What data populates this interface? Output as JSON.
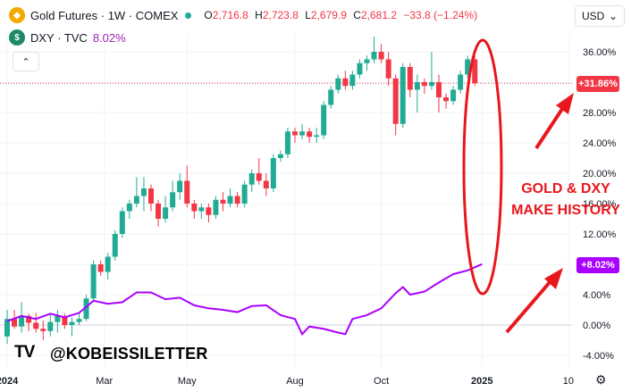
{
  "header": {
    "gold_symbol": "Gold Futures · 1W · COMEX",
    "ohlc": [
      {
        "k": "O",
        "v": "2,716.8"
      },
      {
        "k": "H",
        "v": "2,723.8"
      },
      {
        "k": "L",
        "v": "2,679.9"
      },
      {
        "k": "C",
        "v": "2,681.2"
      },
      {
        "k": "",
        "v": "−33.8 (−1.24%)"
      }
    ],
    "dxy_symbol": "DXY · TVC",
    "dxy_pct": "8.02%",
    "currency": "USD",
    "collapse": "⌃"
  },
  "overlay": {
    "annotation_line1": "GOLD & DXY",
    "annotation_line2": "MAKE HISTORY",
    "handle": "@KOBEISSILETTER",
    "logo": "TV"
  },
  "colors": {
    "up": "#22ab94",
    "down": "#f23645",
    "dxy_line": "#aa00ff",
    "annotation": "#e8161d",
    "grid": "#f0f3fa"
  },
  "chart_data": {
    "type": "candlestick+line",
    "y_unit": "%",
    "ylim": [
      -5.5,
      40.5
    ],
    "y_ticks": [
      "36.00%",
      "32.00%",
      "28.00%",
      "24.00%",
      "20.00%",
      "16.00%",
      "12.00%",
      "8.00%",
      "4.00%",
      "0.00%",
      "-4.00%"
    ],
    "y_tick_values": [
      36,
      32,
      28,
      24,
      20,
      16,
      12,
      8,
      4,
      0,
      -4
    ],
    "x_labels": [
      "2024",
      "Mar",
      "May",
      "Aug",
      "Oct",
      "2025",
      "10"
    ],
    "x_label_index": [
      0,
      13.5,
      25,
      40,
      52,
      66,
      78
    ],
    "x_range": [
      -1,
      82
    ],
    "last_value_tags": {
      "gold": "+31.86%",
      "dxy": "+8.02%"
    },
    "gold_last": 31.86,
    "gold_candles": [
      [
        0,
        -1.5,
        2.0,
        -2.5,
        0.8
      ],
      [
        1,
        0.8,
        2.0,
        -0.5,
        -0.2
      ],
      [
        2,
        -0.2,
        3.0,
        -1.0,
        1.2
      ],
      [
        3,
        1.2,
        1.5,
        -0.8,
        0.3
      ],
      [
        4,
        0.3,
        1.6,
        -1.0,
        -0.5
      ],
      [
        5,
        -0.5,
        0.6,
        -2.0,
        -0.8
      ],
      [
        6,
        -0.8,
        1.5,
        -1.5,
        0.4
      ],
      [
        7,
        0.4,
        2.0,
        -1.0,
        1.2
      ],
      [
        8,
        1.2,
        1.5,
        -0.5,
        0.0
      ],
      [
        9,
        0.0,
        1.0,
        -1.5,
        0.4
      ],
      [
        10,
        0.4,
        1.5,
        0.0,
        0.8
      ],
      [
        11,
        0.8,
        4.0,
        0.5,
        3.5
      ],
      [
        12,
        3.5,
        8.5,
        3.0,
        8.0
      ],
      [
        13,
        8.0,
        8.5,
        6.5,
        7.0
      ],
      [
        14,
        7.0,
        9.5,
        6.0,
        9.0
      ],
      [
        15,
        9.0,
        12.5,
        8.5,
        12.0
      ],
      [
        16,
        12.0,
        15.5,
        11.5,
        15.0
      ],
      [
        17,
        15.0,
        16.5,
        14.0,
        16.0
      ],
      [
        18,
        16.0,
        19.5,
        15.5,
        17.0
      ],
      [
        19,
        17.0,
        19.5,
        15.0,
        18.0
      ],
      [
        20,
        18.0,
        18.5,
        15.0,
        16.0
      ],
      [
        21,
        16.0,
        16.5,
        13.0,
        14.0
      ],
      [
        22,
        14.0,
        17.0,
        13.5,
        15.5
      ],
      [
        23,
        15.5,
        19.0,
        15.0,
        17.5
      ],
      [
        24,
        17.5,
        20.0,
        16.5,
        19.0
      ],
      [
        25,
        19.0,
        21.0,
        15.5,
        16.0
      ],
      [
        26,
        16.0,
        16.5,
        14.0,
        15.0
      ],
      [
        27,
        15.0,
        16.0,
        14.0,
        15.5
      ],
      [
        28,
        15.5,
        16.0,
        13.5,
        14.5
      ],
      [
        29,
        14.5,
        17.0,
        14.0,
        16.5
      ],
      [
        30,
        16.5,
        17.5,
        15.0,
        16.0
      ],
      [
        31,
        16.0,
        18.0,
        15.5,
        17.0
      ],
      [
        32,
        17.0,
        17.5,
        15.5,
        16.0
      ],
      [
        33,
        16.0,
        19.0,
        15.5,
        18.5
      ],
      [
        34,
        18.5,
        20.5,
        17.5,
        20.0
      ],
      [
        35,
        20.0,
        22.0,
        18.5,
        19.0
      ],
      [
        36,
        19.0,
        20.0,
        17.0,
        18.0
      ],
      [
        37,
        18.0,
        22.5,
        17.5,
        22.0
      ],
      [
        38,
        22.0,
        23.0,
        21.5,
        22.5
      ],
      [
        39,
        22.5,
        26.0,
        22.0,
        25.5
      ],
      [
        40,
        25.5,
        26.0,
        24.0,
        25.0
      ],
      [
        41,
        25.0,
        26.5,
        24.5,
        25.5
      ],
      [
        42,
        25.5,
        26.0,
        24.0,
        24.8
      ],
      [
        43,
        24.8,
        26.0,
        24.0,
        25.0
      ],
      [
        44,
        25.0,
        29.5,
        24.5,
        29.0
      ],
      [
        45,
        29.0,
        31.5,
        28.5,
        31.0
      ],
      [
        46,
        31.0,
        33.0,
        30.5,
        32.5
      ],
      [
        47,
        32.5,
        33.5,
        31.0,
        31.5
      ],
      [
        48,
        31.5,
        33.5,
        31.0,
        33.0
      ],
      [
        49,
        33.0,
        35.0,
        32.5,
        34.5
      ],
      [
        50,
        34.5,
        35.5,
        33.5,
        35.0
      ],
      [
        51,
        35.0,
        38.0,
        34.5,
        36.0
      ],
      [
        52,
        36.0,
        37.0,
        34.5,
        35.0
      ],
      [
        53,
        35.0,
        36.0,
        31.5,
        32.5
      ],
      [
        54,
        32.5,
        33.0,
        25.0,
        26.5
      ],
      [
        55,
        26.5,
        34.5,
        26.0,
        34.0
      ],
      [
        56,
        34.0,
        34.5,
        30.0,
        31.0
      ],
      [
        57,
        31.0,
        33.0,
        28.0,
        32.0
      ],
      [
        58,
        32.0,
        32.5,
        30.5,
        31.5
      ],
      [
        59,
        31.5,
        36.0,
        31.0,
        32.0
      ],
      [
        60,
        32.0,
        33.0,
        28.0,
        30.0
      ],
      [
        61,
        30.0,
        30.5,
        28.5,
        29.5
      ],
      [
        62,
        29.5,
        31.5,
        29.0,
        31.0
      ],
      [
        63,
        31.0,
        33.5,
        30.5,
        33.0
      ],
      [
        64,
        33.0,
        35.5,
        32.5,
        35.0
      ],
      [
        65,
        35.0,
        35.5,
        31.5,
        31.86
      ]
    ],
    "dxy_line": [
      [
        0,
        0.5
      ],
      [
        2,
        1.2
      ],
      [
        4,
        0.8
      ],
      [
        6,
        1.5
      ],
      [
        8,
        1.0
      ],
      [
        10,
        1.6
      ],
      [
        12,
        3.2
      ],
      [
        14,
        2.8
      ],
      [
        16,
        3.0
      ],
      [
        18,
        4.3
      ],
      [
        20,
        4.3
      ],
      [
        22,
        3.4
      ],
      [
        24,
        3.6
      ],
      [
        26,
        2.6
      ],
      [
        28,
        2.2
      ],
      [
        30,
        2.0
      ],
      [
        32,
        1.7
      ],
      [
        34,
        2.5
      ],
      [
        36,
        2.6
      ],
      [
        38,
        1.3
      ],
      [
        40,
        0.8
      ],
      [
        41,
        -1.2
      ],
      [
        42,
        -0.2
      ],
      [
        44,
        -0.5
      ],
      [
        46,
        -1.0
      ],
      [
        47,
        -1.2
      ],
      [
        48,
        0.8
      ],
      [
        50,
        1.3
      ],
      [
        52,
        2.2
      ],
      [
        54,
        4.2
      ],
      [
        55,
        5.0
      ],
      [
        56,
        4.0
      ],
      [
        58,
        4.4
      ],
      [
        60,
        5.6
      ],
      [
        62,
        6.7
      ],
      [
        64,
        7.2
      ],
      [
        66,
        8.02
      ]
    ]
  }
}
